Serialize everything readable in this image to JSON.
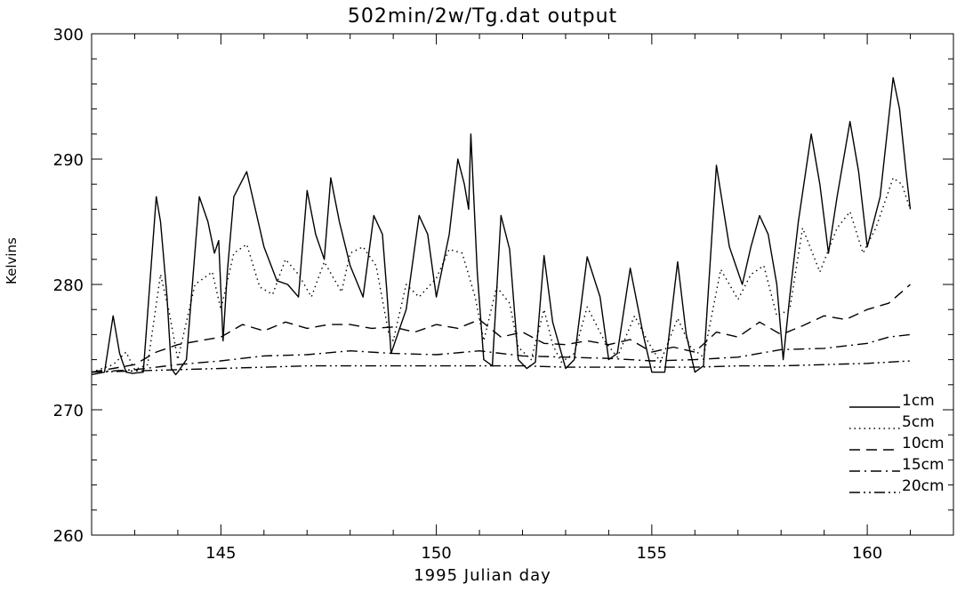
{
  "chart_data": {
    "type": "line",
    "title": "502min/2w/Tg.dat output",
    "xlabel": "1995 Julian day",
    "ylabel": "Kelvins",
    "xlim": [
      142.0,
      162.0
    ],
    "ylim": [
      260,
      300
    ],
    "xticks": [
      145,
      150,
      155,
      160
    ],
    "yticks": [
      260,
      270,
      280,
      290,
      300
    ],
    "legend_position": "bottom-right",
    "series": [
      {
        "name": "1cm",
        "dash": "solid",
        "x": [
          142.0,
          142.3,
          142.5,
          142.65,
          142.8,
          142.95,
          143.2,
          143.5,
          143.6,
          143.75,
          143.85,
          143.95,
          144.0,
          144.2,
          144.5,
          144.7,
          144.85,
          144.95,
          145.05,
          145.15,
          145.3,
          145.6,
          145.8,
          146.0,
          146.3,
          146.55,
          146.8,
          147.0,
          147.2,
          147.4,
          147.55,
          147.75,
          148.0,
          148.3,
          148.55,
          148.75,
          148.85,
          148.95,
          149.3,
          149.6,
          149.8,
          150.0,
          150.3,
          150.5,
          150.65,
          150.75,
          150.8,
          150.95,
          151.1,
          151.3,
          151.5,
          151.7,
          151.9,
          152.1,
          152.3,
          152.5,
          152.7,
          153.0,
          153.2,
          153.5,
          153.8,
          154.0,
          154.2,
          154.5,
          154.8,
          155.0,
          155.3,
          155.6,
          155.8,
          156.0,
          156.2,
          156.5,
          156.8,
          157.1,
          157.3,
          157.5,
          157.7,
          157.9,
          158.05,
          158.2,
          158.4,
          158.7,
          158.9,
          159.1,
          159.3,
          159.6,
          159.8,
          160.0,
          160.3,
          160.6,
          160.75,
          160.9,
          161.0
        ],
        "y": [
          272.8,
          273.0,
          277.5,
          274.5,
          273.0,
          272.9,
          273.0,
          287.0,
          285.0,
          279.0,
          273.3,
          272.8,
          273.0,
          274.0,
          287.0,
          285.0,
          282.5,
          283.5,
          275.5,
          281.0,
          287.0,
          289.0,
          286.0,
          283.0,
          280.3,
          280.0,
          279.0,
          287.5,
          284.0,
          282.0,
          288.5,
          285.0,
          281.5,
          279.0,
          285.5,
          284.0,
          279.5,
          274.5,
          278.0,
          285.5,
          284.0,
          279.0,
          284.0,
          290.0,
          288.0,
          286.0,
          292.0,
          281.0,
          274.0,
          273.5,
          285.5,
          282.8,
          274.0,
          273.3,
          273.8,
          282.3,
          277.0,
          273.3,
          274.0,
          282.2,
          279.0,
          274.0,
          274.5,
          281.3,
          276.0,
          273.0,
          273.0,
          281.8,
          276.0,
          273.0,
          273.5,
          289.5,
          283.0,
          280.0,
          283.0,
          285.5,
          284.0,
          280.0,
          274.0,
          279.0,
          285.0,
          292.0,
          288.0,
          282.5,
          287.0,
          293.0,
          289.0,
          283.0,
          287.0,
          296.5,
          294.0,
          289.0,
          286.0
        ]
      },
      {
        "name": "5cm",
        "dash": "dotted",
        "x": [
          142.0,
          142.5,
          142.8,
          143.0,
          143.3,
          143.6,
          143.8,
          144.0,
          144.4,
          144.8,
          145.0,
          145.3,
          145.6,
          145.9,
          146.2,
          146.5,
          146.8,
          147.1,
          147.4,
          147.8,
          148.0,
          148.3,
          148.6,
          148.9,
          149.0,
          149.3,
          149.6,
          150.0,
          150.3,
          150.6,
          150.9,
          151.1,
          151.4,
          151.7,
          151.9,
          152.2,
          152.5,
          152.7,
          152.9,
          153.2,
          153.5,
          153.9,
          154.2,
          154.6,
          154.9,
          155.2,
          155.6,
          155.9,
          156.2,
          156.6,
          157.0,
          157.3,
          157.6,
          157.9,
          158.2,
          158.5,
          158.9,
          159.3,
          159.6,
          159.9,
          160.2,
          160.6,
          160.8,
          161.0
        ],
        "y": [
          273.0,
          273.6,
          274.6,
          273.2,
          273.6,
          280.8,
          277.8,
          274.0,
          280.0,
          281.0,
          278.0,
          282.5,
          283.2,
          279.8,
          279.2,
          282.0,
          280.8,
          279.0,
          281.8,
          279.4,
          282.5,
          283.0,
          281.5,
          276.0,
          275.5,
          280.0,
          279.0,
          280.5,
          282.8,
          282.5,
          279.0,
          275.5,
          279.8,
          278.5,
          275.0,
          274.0,
          278.0,
          275.2,
          273.8,
          274.5,
          278.2,
          275.5,
          274.2,
          277.5,
          275.5,
          273.8,
          277.3,
          275.0,
          274.2,
          281.2,
          278.8,
          280.8,
          281.5,
          277.5,
          278.0,
          284.5,
          281.0,
          284.5,
          285.8,
          282.5,
          284.5,
          288.5,
          288.0,
          286.0
        ]
      },
      {
        "name": "10cm",
        "dash": "dashed",
        "x": [
          142.0,
          142.5,
          143.0,
          143.5,
          144.0,
          144.5,
          145.0,
          145.5,
          146.0,
          146.5,
          147.0,
          147.5,
          148.0,
          148.5,
          149.0,
          149.5,
          150.0,
          150.5,
          151.0,
          151.5,
          152.0,
          152.5,
          153.0,
          153.5,
          154.0,
          154.5,
          155.0,
          155.5,
          156.0,
          156.5,
          157.0,
          157.5,
          158.0,
          158.5,
          159.0,
          159.5,
          160.0,
          160.5,
          161.0
        ],
        "y": [
          273.0,
          273.3,
          273.6,
          274.6,
          275.2,
          275.5,
          275.8,
          276.8,
          276.3,
          277.0,
          276.5,
          276.8,
          276.8,
          276.5,
          276.6,
          276.2,
          276.8,
          276.5,
          277.2,
          275.8,
          276.2,
          275.3,
          275.2,
          275.5,
          275.2,
          275.6,
          274.6,
          275.0,
          274.6,
          276.2,
          275.8,
          277.0,
          276.0,
          276.7,
          277.5,
          277.2,
          278.0,
          278.5,
          280.0
        ]
      },
      {
        "name": "15cm",
        "dash": "dashdot",
        "x": [
          142.0,
          143.0,
          144.0,
          145.0,
          146.0,
          147.0,
          148.0,
          149.0,
          150.0,
          151.0,
          152.0,
          153.0,
          154.0,
          155.0,
          156.0,
          157.0,
          158.0,
          159.0,
          160.0,
          160.5,
          161.0
        ],
        "y": [
          273.0,
          273.2,
          273.6,
          273.9,
          274.3,
          274.4,
          274.7,
          274.5,
          274.4,
          274.7,
          274.3,
          274.2,
          274.1,
          273.9,
          274.0,
          274.2,
          274.8,
          274.9,
          275.3,
          275.8,
          276.0
        ]
      },
      {
        "name": "20cm",
        "dash": "dashdotdot",
        "x": [
          142.0,
          143.0,
          144.0,
          145.0,
          146.0,
          147.0,
          148.0,
          149.0,
          150.0,
          151.0,
          152.0,
          153.0,
          154.0,
          155.0,
          156.0,
          157.0,
          158.0,
          159.0,
          160.0,
          161.0
        ],
        "y": [
          273.0,
          273.1,
          273.2,
          273.3,
          273.4,
          273.5,
          273.5,
          273.5,
          273.5,
          273.5,
          273.5,
          273.4,
          273.4,
          273.4,
          273.4,
          273.5,
          273.5,
          273.6,
          273.7,
          273.9
        ]
      }
    ]
  }
}
